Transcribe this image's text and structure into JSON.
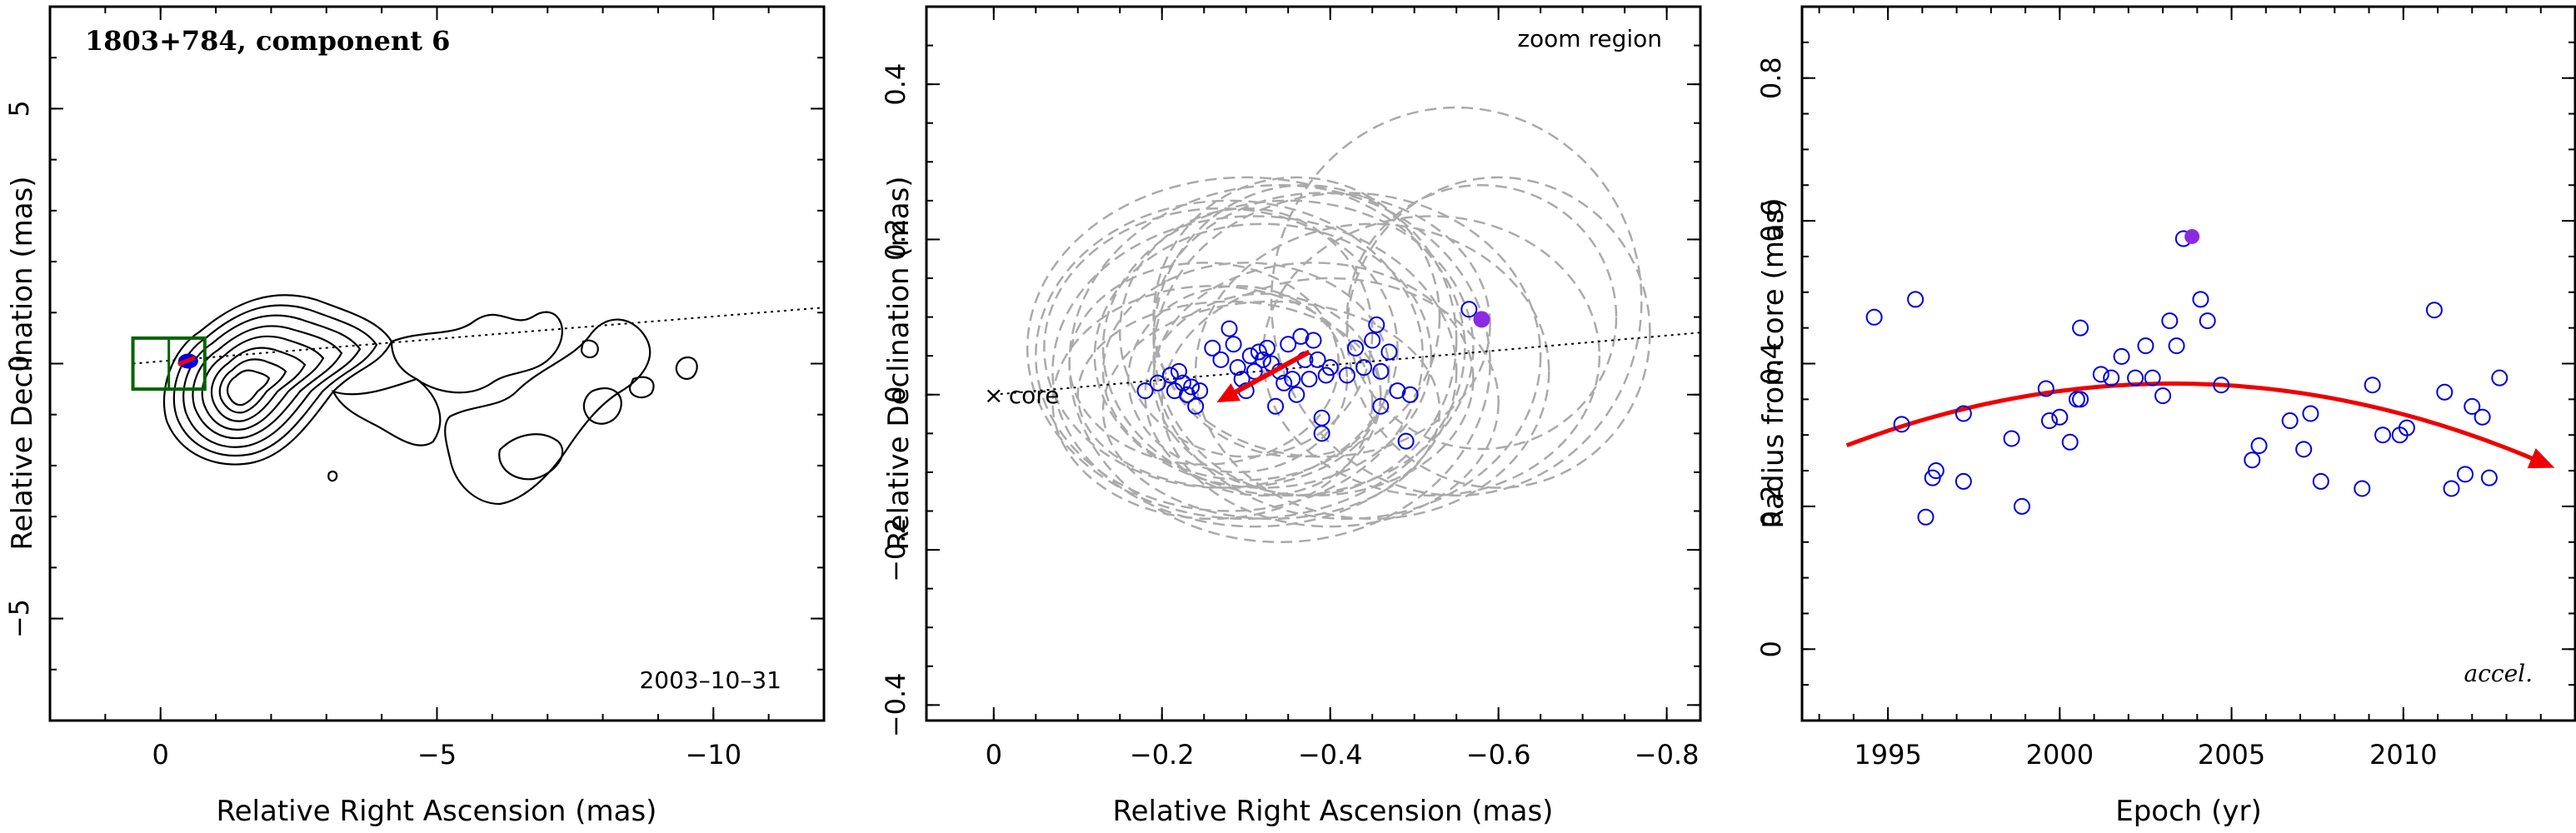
{
  "colors": {
    "points": "#0000dd",
    "highlight": "#8a2be2",
    "arrow": "#ee0000",
    "ellipses": "#aaaaaa",
    "box": "#006400"
  },
  "chart_data": [
    {
      "type": "contour",
      "title": "1803+784, component 6",
      "date_label": "2003–10–31",
      "xlabel": "Relative Right Ascension (mas)",
      "ylabel": "Relative Declination (mas)",
      "xlim": [
        2,
        -12
      ],
      "ylim": [
        -7,
        7
      ],
      "xticks": [
        {
          "v": 0,
          "label": "0"
        },
        {
          "v": -5,
          "label": "−5"
        },
        {
          "v": -10,
          "label": "−10"
        }
      ],
      "yticks": [
        {
          "v": 5,
          "label": "5"
        },
        {
          "v": 0,
          "label": "0"
        },
        {
          "v": -5,
          "label": "−5"
        }
      ],
      "jet_line": {
        "x": [
          0.5,
          -12
        ],
        "y": [
          0,
          1.1
        ]
      },
      "zoom_box": {
        "x": [
          0.5,
          -0.8
        ],
        "y": [
          -0.5,
          0.5
        ]
      },
      "component_point": [
        -0.5,
        0.05
      ]
    },
    {
      "type": "scatter",
      "zoom_label": "zoom region",
      "core_label": "core",
      "xlabel": "Relative Right Ascension (mas)",
      "ylabel": "Relative Declination (mas)",
      "xlim": [
        0.08,
        -0.84
      ],
      "ylim": [
        -0.42,
        0.5
      ],
      "xticks": [
        {
          "v": 0,
          "label": "0"
        },
        {
          "v": -0.2,
          "label": "−0.2"
        },
        {
          "v": -0.4,
          "label": "−0.4"
        },
        {
          "v": -0.6,
          "label": "−0.6"
        },
        {
          "v": -0.8,
          "label": "−0.8"
        }
      ],
      "yticks": [
        {
          "v": 0.4,
          "label": "0.4"
        },
        {
          "v": 0.2,
          "label": "0.2"
        },
        {
          "v": 0,
          "label": "0"
        },
        {
          "v": -0.2,
          "label": "−0.2"
        },
        {
          "v": -0.4,
          "label": "−0.4"
        }
      ],
      "jet_line": {
        "x": [
          0,
          -0.84
        ],
        "y": [
          0,
          0.08
        ]
      },
      "highlight": [
        -0.58,
        0.097
      ],
      "arrow": {
        "from": [
          -0.375,
          0.055
        ],
        "to": [
          -0.265,
          -0.01
        ]
      },
      "points": [
        [
          -0.18,
          0.005
        ],
        [
          -0.195,
          0.015
        ],
        [
          -0.21,
          0.025
        ],
        [
          -0.215,
          0.005
        ],
        [
          -0.22,
          0.03
        ],
        [
          -0.225,
          0.015
        ],
        [
          -0.23,
          0.0
        ],
        [
          -0.235,
          0.01
        ],
        [
          -0.24,
          -0.015
        ],
        [
          -0.245,
          0.005
        ],
        [
          -0.26,
          0.06
        ],
        [
          -0.27,
          0.045
        ],
        [
          -0.28,
          0.085
        ],
        [
          -0.285,
          0.065
        ],
        [
          -0.29,
          0.035
        ],
        [
          -0.295,
          0.02
        ],
        [
          -0.3,
          0.005
        ],
        [
          -0.305,
          0.05
        ],
        [
          -0.31,
          0.03
        ],
        [
          -0.315,
          0.055
        ],
        [
          -0.32,
          0.045
        ],
        [
          -0.325,
          0.06
        ],
        [
          -0.33,
          0.04
        ],
        [
          -0.335,
          -0.015
        ],
        [
          -0.34,
          0.03
        ],
        [
          -0.345,
          0.015
        ],
        [
          -0.35,
          0.065
        ],
        [
          -0.355,
          0.02
        ],
        [
          -0.36,
          0.0
        ],
        [
          -0.365,
          0.075
        ],
        [
          -0.37,
          0.045
        ],
        [
          -0.375,
          0.02
        ],
        [
          -0.38,
          0.07
        ],
        [
          -0.385,
          0.045
        ],
        [
          -0.39,
          -0.03
        ],
        [
          -0.39,
          -0.05
        ],
        [
          -0.395,
          0.025
        ],
        [
          -0.4,
          0.035
        ],
        [
          -0.42,
          0.025
        ],
        [
          -0.43,
          0.06
        ],
        [
          -0.44,
          0.035
        ],
        [
          -0.45,
          0.07
        ],
        [
          -0.455,
          0.09
        ],
        [
          -0.46,
          0.03
        ],
        [
          -0.46,
          -0.015
        ],
        [
          -0.47,
          0.055
        ],
        [
          -0.48,
          0.005
        ],
        [
          -0.49,
          -0.06
        ],
        [
          -0.495,
          0.0
        ],
        [
          -0.565,
          0.11
        ]
      ],
      "ellipses": [
        [
          -0.3,
          0.03,
          0.17,
          0.14
        ],
        [
          -0.32,
          0.05,
          0.2,
          0.17
        ],
        [
          -0.28,
          0.0,
          0.18,
          0.12
        ],
        [
          -0.35,
          0.06,
          0.22,
          0.19
        ],
        [
          -0.3,
          0.08,
          0.15,
          0.16
        ],
        [
          -0.38,
          0.02,
          0.19,
          0.15
        ],
        [
          -0.25,
          0.04,
          0.16,
          0.13
        ],
        [
          -0.42,
          0.05,
          0.23,
          0.21
        ],
        [
          -0.33,
          -0.02,
          0.2,
          0.14
        ],
        [
          -0.27,
          0.06,
          0.21,
          0.18
        ],
        [
          -0.36,
          0.1,
          0.17,
          0.18
        ],
        [
          -0.4,
          -0.01,
          0.2,
          0.16
        ],
        [
          -0.31,
          0.03,
          0.24,
          0.2
        ],
        [
          -0.29,
          0.02,
          0.13,
          0.12
        ],
        [
          -0.34,
          0.04,
          0.25,
          0.23
        ],
        [
          -0.26,
          -0.01,
          0.19,
          0.15
        ],
        [
          -0.37,
          0.07,
          0.18,
          0.2
        ],
        [
          -0.45,
          0.03,
          0.21,
          0.19
        ],
        [
          -0.32,
          0.0,
          0.14,
          0.13
        ],
        [
          -0.3,
          0.06,
          0.26,
          0.22
        ],
        [
          -0.55,
          0.12,
          0.22,
          0.25
        ],
        [
          -0.6,
          0.08,
          0.18,
          0.2
        ],
        [
          -0.52,
          0.05,
          0.2,
          0.18
        ],
        [
          -0.58,
          0.1,
          0.16,
          0.17
        ],
        [
          -0.39,
          0.09,
          0.2,
          0.17
        ],
        [
          -0.28,
          0.05,
          0.23,
          0.2
        ]
      ]
    },
    {
      "type": "scatter",
      "accel_label": "accel.",
      "xlabel": "Epoch (yr)",
      "ylabel": "Radius from core (mas)",
      "xlim": [
        1992.5,
        2015
      ],
      "ylim": [
        -0.1,
        0.9
      ],
      "xticks": [
        {
          "v": 1995,
          "label": "1995"
        },
        {
          "v": 2000,
          "label": "2000"
        },
        {
          "v": 2005,
          "label": "2005"
        },
        {
          "v": 2010,
          "label": "2010"
        }
      ],
      "yticks": [
        {
          "v": 0,
          "label": "0"
        },
        {
          "v": 0.2,
          "label": "0.2"
        },
        {
          "v": 0.4,
          "label": "0.4"
        },
        {
          "v": 0.6,
          "label": "0.6"
        },
        {
          "v": 0.8,
          "label": "0.8"
        }
      ],
      "fit_curve": {
        "t0": 2003.3,
        "peak": 0.372,
        "a": 0.00096,
        "x_range": [
          1993.8,
          2014.0
        ]
      },
      "highlight": [
        2003.85,
        0.578
      ],
      "points": [
        [
          1994.6,
          0.465
        ],
        [
          1995.4,
          0.315
        ],
        [
          1995.8,
          0.49
        ],
        [
          1996.1,
          0.185
        ],
        [
          1996.3,
          0.24
        ],
        [
          1996.4,
          0.25
        ],
        [
          1997.2,
          0.235
        ],
        [
          1997.2,
          0.33
        ],
        [
          1998.6,
          0.295
        ],
        [
          1998.9,
          0.2
        ],
        [
          1999.6,
          0.365
        ],
        [
          1999.7,
          0.32
        ],
        [
          2000.0,
          0.325
        ],
        [
          2000.3,
          0.29
        ],
        [
          2000.5,
          0.35
        ],
        [
          2000.6,
          0.35
        ],
        [
          2000.6,
          0.45
        ],
        [
          2001.2,
          0.385
        ],
        [
          2001.5,
          0.38
        ],
        [
          2001.8,
          0.41
        ],
        [
          2002.2,
          0.38
        ],
        [
          2002.5,
          0.425
        ],
        [
          2002.7,
          0.38
        ],
        [
          2003.0,
          0.355
        ],
        [
          2003.2,
          0.46
        ],
        [
          2003.4,
          0.425
        ],
        [
          2003.6,
          0.575
        ],
        [
          2004.1,
          0.49
        ],
        [
          2004.3,
          0.46
        ],
        [
          2004.7,
          0.37
        ],
        [
          2005.6,
          0.265
        ],
        [
          2005.8,
          0.285
        ],
        [
          2006.7,
          0.32
        ],
        [
          2007.1,
          0.28
        ],
        [
          2007.3,
          0.33
        ],
        [
          2007.6,
          0.235
        ],
        [
          2008.8,
          0.225
        ],
        [
          2009.1,
          0.37
        ],
        [
          2009.4,
          0.3
        ],
        [
          2009.9,
          0.3
        ],
        [
          2010.1,
          0.31
        ],
        [
          2010.9,
          0.475
        ],
        [
          2011.2,
          0.36
        ],
        [
          2011.4,
          0.225
        ],
        [
          2011.8,
          0.245
        ],
        [
          2012.0,
          0.34
        ],
        [
          2012.3,
          0.325
        ],
        [
          2012.5,
          0.24
        ],
        [
          2012.8,
          0.38
        ]
      ]
    }
  ]
}
